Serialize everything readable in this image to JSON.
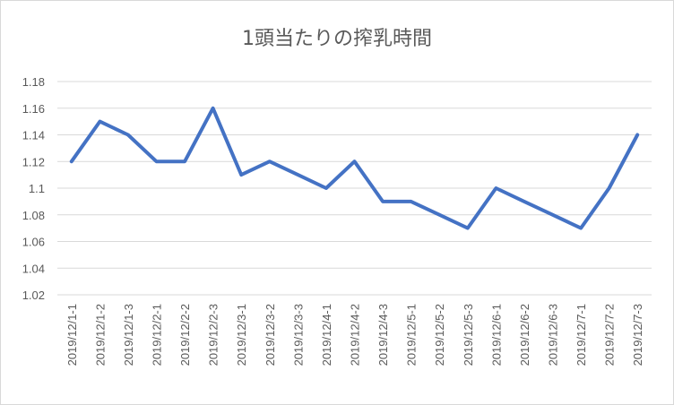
{
  "chart_data": {
    "type": "line",
    "title": "1頭当たりの搾乳時間",
    "xlabel": "",
    "ylabel": "",
    "ylim": [
      1.02,
      1.18
    ],
    "ytick_step": 0.02,
    "ytick_labels": [
      "1.02",
      "1.04",
      "1.06",
      "1.08",
      "1.1",
      "1.12",
      "1.14",
      "1.16",
      "1.18"
    ],
    "grid": true,
    "legend": "none",
    "categories": [
      "2019/12/1-1",
      "2019/12/1-2",
      "2019/12/1-3",
      "2019/12/2-1",
      "2019/12/2-2",
      "2019/12/2-3",
      "2019/12/3-1",
      "2019/12/3-2",
      "2019/12/3-3",
      "2019/12/4-1",
      "2019/12/4-2",
      "2019/12/4-3",
      "2019/12/5-1",
      "2019/12/5-2",
      "2019/12/5-3",
      "2019/12/6-1",
      "2019/12/6-2",
      "2019/12/6-3",
      "2019/12/7-1",
      "2019/12/7-2",
      "2019/12/7-3"
    ],
    "series": [
      {
        "values": [
          1.12,
          1.15,
          1.14,
          1.12,
          1.12,
          1.16,
          1.11,
          1.12,
          1.11,
          1.1,
          1.12,
          1.09,
          1.09,
          1.08,
          1.07,
          1.1,
          1.09,
          1.08,
          1.07,
          1.1,
          1.14
        ],
        "color": "#4472c4"
      }
    ]
  }
}
